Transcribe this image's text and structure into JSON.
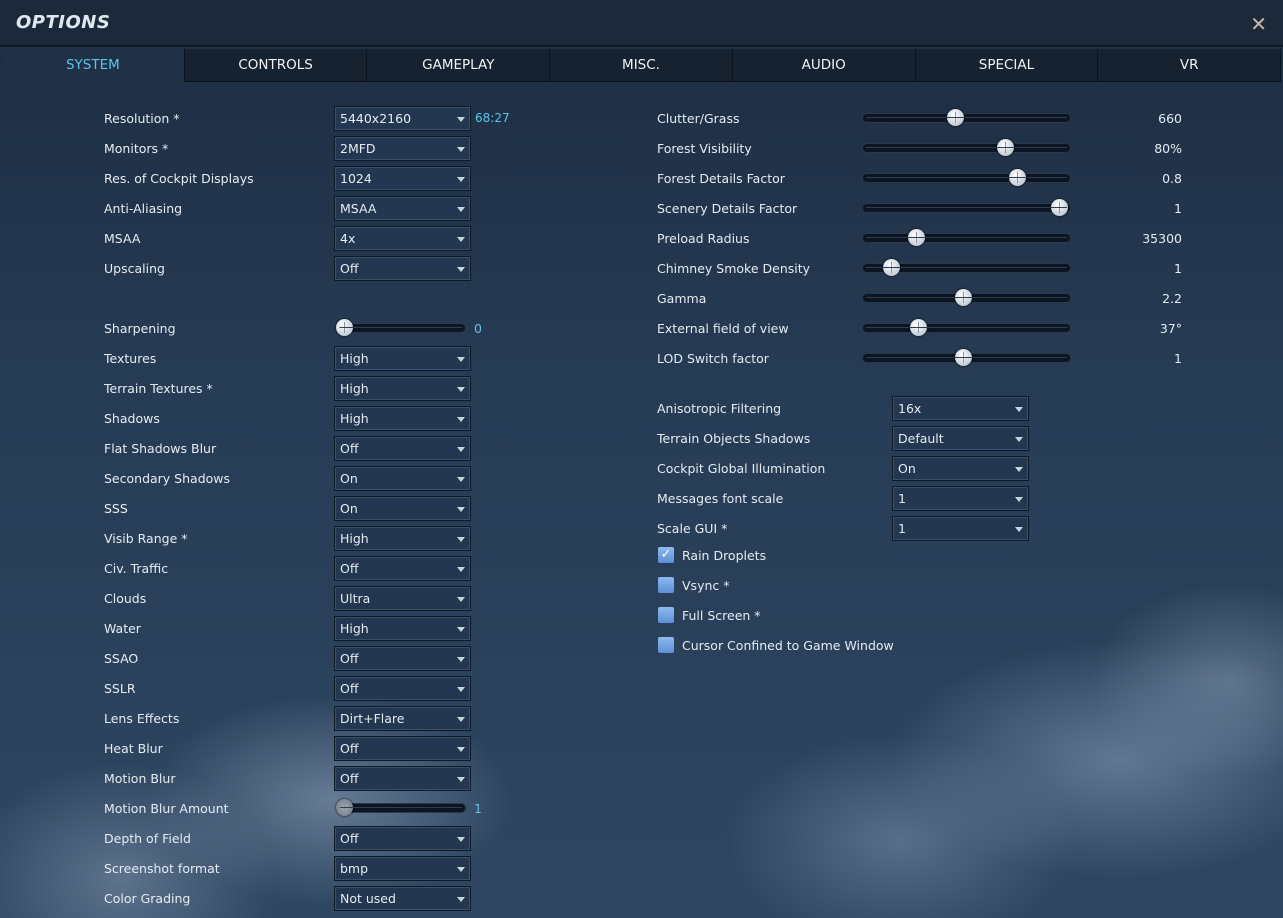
{
  "window": {
    "title": "OPTIONS",
    "close_icon": "close-icon"
  },
  "tabs": [
    {
      "label": "SYSTEM",
      "active": true
    },
    {
      "label": "CONTROLS"
    },
    {
      "label": "GAMEPLAY"
    },
    {
      "label": "MISC."
    },
    {
      "label": "AUDIO"
    },
    {
      "label": "SPECIAL"
    },
    {
      "label": "VR"
    }
  ],
  "colors": {
    "accent": "#5fc3e8",
    "background": "#24374f"
  },
  "left": {
    "group1": [
      {
        "type": "dropdown",
        "label": "Resolution *",
        "value": "5440x2160",
        "extra": "68:27"
      },
      {
        "type": "dropdown",
        "label": "Monitors *",
        "value": "2MFD"
      },
      {
        "type": "dropdown",
        "label": "Res. of Cockpit Displays",
        "value": "1024"
      },
      {
        "type": "dropdown",
        "label": "Anti-Aliasing",
        "value": "MSAA"
      },
      {
        "type": "dropdown",
        "label": "MSAA",
        "value": "4x"
      },
      {
        "type": "dropdown",
        "label": "Upscaling",
        "value": "Off"
      }
    ],
    "group2": [
      {
        "type": "slider",
        "label": "Sharpening",
        "value": "0",
        "fraction": 0
      },
      {
        "type": "dropdown",
        "label": "Textures",
        "value": "High"
      },
      {
        "type": "dropdown",
        "label": "Terrain Textures *",
        "value": "High"
      },
      {
        "type": "dropdown",
        "label": "Shadows",
        "value": "High"
      },
      {
        "type": "dropdown",
        "label": "Flat Shadows Blur",
        "value": "Off"
      },
      {
        "type": "dropdown",
        "label": "Secondary Shadows",
        "value": "On"
      },
      {
        "type": "dropdown",
        "label": "SSS",
        "value": "On"
      },
      {
        "type": "dropdown",
        "label": "Visib Range *",
        "value": "High"
      },
      {
        "type": "dropdown",
        "label": "Civ. Traffic",
        "value": "Off"
      },
      {
        "type": "dropdown",
        "label": "Clouds",
        "value": "Ultra"
      },
      {
        "type": "dropdown",
        "label": "Water",
        "value": "High"
      },
      {
        "type": "dropdown",
        "label": "SSAO",
        "value": "Off"
      },
      {
        "type": "dropdown",
        "label": "SSLR",
        "value": "Off"
      },
      {
        "type": "dropdown",
        "label": "Lens Effects",
        "value": "Dirt+Flare"
      },
      {
        "type": "dropdown",
        "label": "Heat Blur",
        "value": "Off"
      },
      {
        "type": "dropdown",
        "label": "Motion Blur",
        "value": "Off"
      },
      {
        "type": "slider",
        "label": "Motion Blur Amount",
        "value": "1",
        "fraction": 0,
        "disabled": true
      },
      {
        "type": "dropdown",
        "label": "Depth of Field",
        "value": "Off"
      },
      {
        "type": "dropdown",
        "label": "Screenshot format",
        "value": "bmp"
      },
      {
        "type": "dropdown",
        "label": "Color Grading",
        "value": "Not used"
      }
    ]
  },
  "right": {
    "sliders": [
      {
        "label": "Clutter/Grass",
        "value": "660",
        "fraction": 0.44
      },
      {
        "label": "Forest Visibility",
        "value": "80%",
        "fraction": 0.7
      },
      {
        "label": "Forest Details Factor",
        "value": "0.8",
        "fraction": 0.76
      },
      {
        "label": "Scenery Details Factor",
        "value": "1",
        "fraction": 0.98
      },
      {
        "label": "Preload Radius",
        "value": "35300",
        "fraction": 0.24
      },
      {
        "label": "Chimney Smoke Density",
        "value": "1",
        "fraction": 0.11
      },
      {
        "label": "Gamma",
        "value": "2.2",
        "fraction": 0.48
      },
      {
        "label": "External field of view",
        "value": "37°",
        "fraction": 0.25
      },
      {
        "label": "LOD Switch factor",
        "value": "1",
        "fraction": 0.48
      }
    ],
    "dropdowns": [
      {
        "label": "Anisotropic Filtering",
        "value": "16x"
      },
      {
        "label": "Terrain Objects Shadows",
        "value": "Default"
      },
      {
        "label": "Cockpit Global Illumination",
        "value": "On"
      },
      {
        "label": "Messages font scale",
        "value": "1"
      },
      {
        "label": "Scale GUI *",
        "value": "1"
      }
    ],
    "checkboxes": [
      {
        "label": "Rain Droplets",
        "checked": true
      },
      {
        "label": "Vsync *",
        "checked": false
      },
      {
        "label": "Full Screen *",
        "checked": false
      },
      {
        "label": "Cursor Confined to Game Window",
        "checked": false
      }
    ]
  }
}
